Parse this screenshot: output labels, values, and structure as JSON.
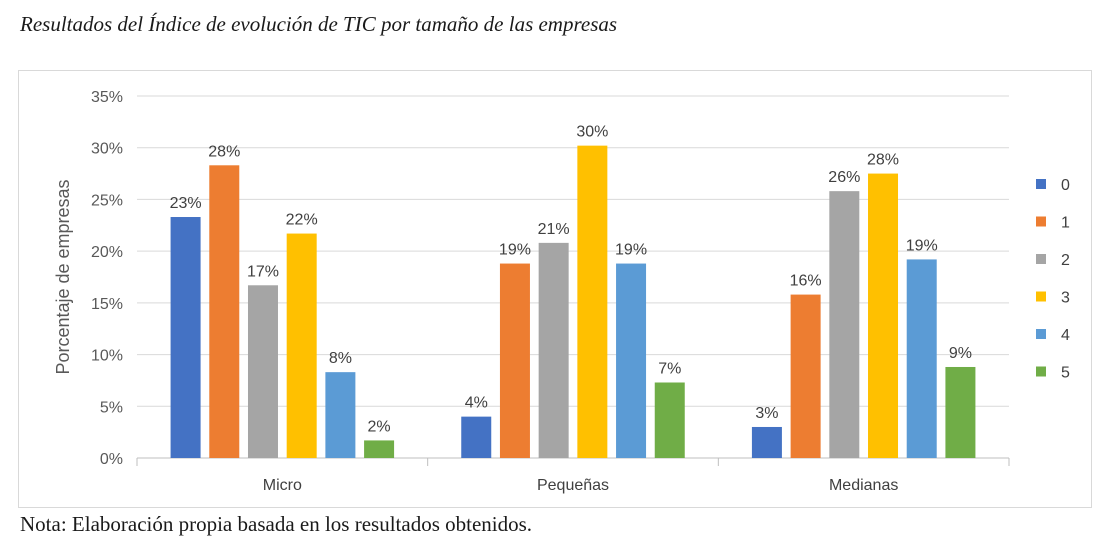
{
  "caption": "Resultados del Índice de evolución de TIC por tamaño de las empresas",
  "note": "Nota: Elaboración propia basada en los resultados obtenidos.",
  "chart_data": {
    "type": "bar",
    "title": "",
    "xlabel": "",
    "ylabel": "Porcentaje de empresas",
    "categories": [
      "Micro",
      "Pequeñas",
      "Medianas"
    ],
    "ylim": [
      0,
      35
    ],
    "yticks": [
      "0%",
      "5%",
      "10%",
      "15%",
      "20%",
      "25%",
      "30%",
      "35%"
    ],
    "ytick_values": [
      0,
      5,
      10,
      15,
      20,
      25,
      30,
      35
    ],
    "grid": true,
    "legend_position": "right",
    "series": [
      {
        "name": "0",
        "color": "#4472C4",
        "values": [
          23.3,
          4.0,
          3.0
        ],
        "labels": [
          "23%",
          "4%",
          "3%"
        ]
      },
      {
        "name": "1",
        "color": "#ED7D31",
        "values": [
          28.3,
          18.8,
          15.8
        ],
        "labels": [
          "28%",
          "19%",
          "16%"
        ]
      },
      {
        "name": "2",
        "color": "#A5A5A5",
        "values": [
          16.7,
          20.8,
          25.8
        ],
        "labels": [
          "17%",
          "21%",
          "26%"
        ]
      },
      {
        "name": "3",
        "color": "#FFC000",
        "values": [
          21.7,
          30.2,
          27.5
        ],
        "labels": [
          "22%",
          "30%",
          "28%"
        ]
      },
      {
        "name": "4",
        "color": "#5B9BD5",
        "values": [
          8.3,
          18.8,
          19.2
        ],
        "labels": [
          "8%",
          "19%",
          "19%"
        ]
      },
      {
        "name": "5",
        "color": "#70AD47",
        "values": [
          1.7,
          7.3,
          8.8
        ],
        "labels": [
          "2%",
          "7%",
          "9%"
        ]
      }
    ]
  }
}
